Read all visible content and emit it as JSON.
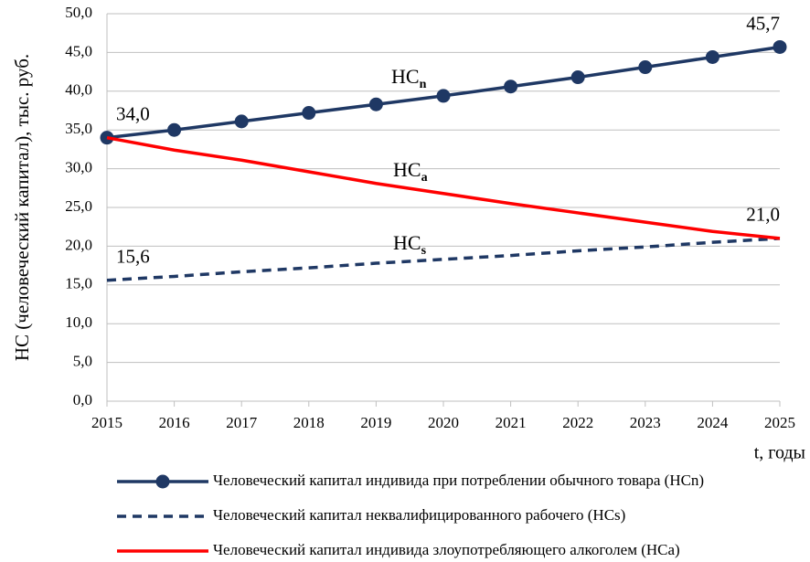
{
  "chart_data": {
    "type": "line",
    "y_label": "НС (человеческий капитал), тыс. руб.",
    "x_label": "t, годы",
    "x": [
      2015,
      2016,
      2017,
      2018,
      2019,
      2020,
      2021,
      2022,
      2023,
      2024,
      2025
    ],
    "xlim": [
      2015,
      2025
    ],
    "xticks": [
      2015,
      2016,
      2017,
      2018,
      2019,
      2020,
      2021,
      2022,
      2023,
      2024,
      2025
    ],
    "ylim": [
      0,
      50
    ],
    "yticks": [
      {
        "value": 0,
        "label": "0,0"
      },
      {
        "value": 5,
        "label": "5,0"
      },
      {
        "value": 10,
        "label": "10,0"
      },
      {
        "value": 15,
        "label": "15,0"
      },
      {
        "value": 20,
        "label": "20,0"
      },
      {
        "value": 25,
        "label": "25,0"
      },
      {
        "value": 30,
        "label": "30,0"
      },
      {
        "value": 35,
        "label": "35,0"
      },
      {
        "value": 40,
        "label": "40,0"
      },
      {
        "value": 45,
        "label": "45,0"
      },
      {
        "value": 50,
        "label": "50,0"
      }
    ],
    "grid": true,
    "legend": "bottom",
    "series": [
      {
        "name": "Человеческий капитал индивида при потреблении обычного товара (HCn)",
        "color": "#1f3864",
        "line_style": "solid",
        "marker": "circle",
        "label": {
          "text": "HC",
          "sub": "n"
        },
        "values": [
          34.0,
          35.0,
          36.1,
          37.2,
          38.3,
          39.4,
          40.6,
          41.8,
          43.1,
          44.4,
          45.7
        ],
        "value_labels": [
          "34,0",
          null,
          null,
          null,
          null,
          null,
          null,
          null,
          null,
          null,
          "45,7"
        ]
      },
      {
        "name": "Человеческий капитал неквалифицированного рабочего (HCs)",
        "color": "#1f3864",
        "line_style": "dashed",
        "marker": null,
        "label": {
          "text": "HC",
          "sub": "s"
        },
        "values": [
          15.6,
          16.1,
          16.7,
          17.2,
          17.8,
          18.3,
          18.8,
          19.4,
          19.9,
          20.5,
          21.0
        ],
        "value_labels": [
          "15,6",
          null,
          null,
          null,
          null,
          null,
          null,
          null,
          null,
          null,
          null
        ]
      },
      {
        "name": "Человеческий капитал индивида злоупотребляющего алкоголем (HCa)",
        "color": "#ff0000",
        "line_style": "solid",
        "marker": null,
        "label": {
          "text": "HC",
          "sub": "a"
        },
        "values": [
          34.0,
          32.4,
          31.1,
          29.6,
          28.1,
          26.8,
          25.5,
          24.3,
          23.1,
          21.9,
          21.0
        ],
        "value_labels": [
          null,
          null,
          null,
          null,
          null,
          null,
          null,
          null,
          null,
          null,
          "21,0"
        ]
      }
    ]
  }
}
